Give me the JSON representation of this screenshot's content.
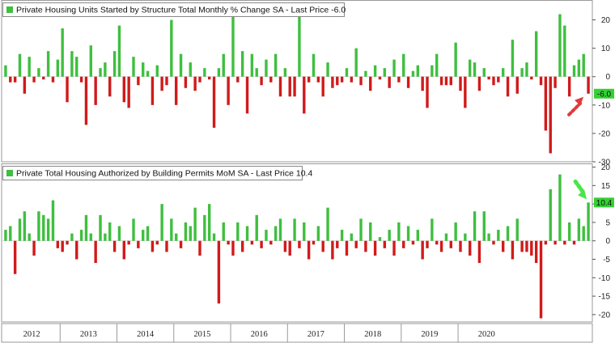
{
  "colors": {
    "positive": "#3fbf3f",
    "negative": "#d11a1a",
    "label_bg": "#33d133",
    "arrow_up": "#49e649",
    "arrow_down": "#e03a3a"
  },
  "chart_data": [
    {
      "type": "bar",
      "title": "Private Housing Units Started by Structure Total Monthly % Change SA - Last Price -6.0",
      "legend_position": "top-left",
      "ylim": [
        -30,
        27
      ],
      "yticks": [
        -30,
        -20,
        -10,
        0,
        10,
        20
      ],
      "ytick_labels": [
        "-30",
        "-20",
        "-10",
        "0",
        "10",
        "20"
      ],
      "last_value_label": "-6.0",
      "annotation": "red arrow pointing to last bar",
      "values": [
        4,
        -2,
        -2,
        8,
        -6,
        7,
        -2,
        3,
        -1,
        9,
        -2,
        6,
        17,
        -9,
        9,
        7,
        -2,
        -17,
        11,
        -10,
        3,
        5,
        -7,
        9,
        18,
        -9,
        -11,
        7,
        -3,
        5,
        2,
        -10,
        4,
        -5,
        -3,
        20,
        -10,
        8,
        -4,
        5,
        -5,
        -2,
        3,
        -1,
        -18,
        3,
        8,
        -10,
        23,
        -2,
        9,
        -13,
        8,
        3,
        -3,
        6,
        -2,
        8,
        -7,
        3,
        -7,
        -7,
        23,
        -13,
        -2,
        8,
        -2,
        -7,
        5,
        -4,
        -3,
        -2,
        3,
        -2,
        10,
        -3,
        2,
        -5,
        4,
        -1,
        3,
        -4,
        6,
        -2,
        8,
        -4,
        2,
        4,
        -5,
        -11,
        4,
        8,
        -3,
        -3,
        -3,
        12,
        -5,
        -11,
        6,
        5,
        -5,
        3,
        -1,
        -3,
        -2,
        3,
        -7,
        13,
        -6,
        3,
        5,
        -1,
        16,
        -3,
        -19,
        -27,
        -4,
        22,
        18,
        -7,
        4,
        6,
        8,
        -6
      ],
      "x_axis": {
        "years": [
          "2012",
          "2013",
          "2014",
          "2015",
          "2016",
          "2017",
          "2018",
          "2019",
          "2020"
        ],
        "start": "2012-01",
        "end": "2020-10",
        "frequency": "monthly"
      }
    },
    {
      "type": "bar",
      "title": "Private Total Housing Authorized by Building Permits MoM SA - Last Price 10.4",
      "legend_position": "top-left",
      "ylim": [
        -22,
        21
      ],
      "yticks": [
        -20,
        -15,
        -10,
        -5,
        0,
        5,
        10,
        15,
        20
      ],
      "ytick_labels": [
        "-20",
        "-15",
        "-10",
        "-5",
        "0",
        "5",
        "10",
        "15",
        "20"
      ],
      "last_value_label": "10.4",
      "annotation": "green arrow pointing to last bar",
      "values": [
        3,
        4,
        -9,
        6,
        8,
        2,
        -4,
        8,
        7,
        6,
        11,
        -2,
        -3,
        -1,
        2,
        -5,
        3,
        7,
        2,
        -6,
        7,
        2,
        5,
        -3,
        4,
        -5,
        -1,
        6,
        -2,
        3,
        4,
        -3,
        -1,
        10,
        -3,
        6,
        2,
        -2,
        5,
        4,
        9,
        -4,
        7,
        10,
        2,
        -17,
        5,
        -1,
        -4,
        5,
        -3,
        4,
        -1,
        7,
        -2,
        3,
        -1,
        4,
        6,
        -3,
        -4,
        6,
        -2,
        5,
        -5,
        -1,
        4,
        -3,
        9,
        -5,
        -2,
        3,
        -4,
        2,
        -2,
        6,
        -3,
        5,
        -4,
        1,
        -2,
        3,
        -4,
        5,
        -2,
        4,
        -1,
        3,
        -5,
        -2,
        6,
        -1,
        -3,
        2,
        -2,
        5,
        -3,
        2,
        -4,
        8,
        -6,
        8,
        2,
        -1,
        3,
        -3,
        4,
        -5,
        6,
        -3,
        -3,
        -4,
        -6,
        -21,
        -1,
        14,
        -1,
        18,
        -1,
        5,
        -1,
        6,
        4,
        10.4
      ],
      "x_axis": {
        "years": [
          "2012",
          "2013",
          "2014",
          "2015",
          "2016",
          "2017",
          "2018",
          "2019",
          "2020"
        ],
        "start": "2012-01",
        "end": "2020-10",
        "frequency": "monthly"
      }
    }
  ]
}
